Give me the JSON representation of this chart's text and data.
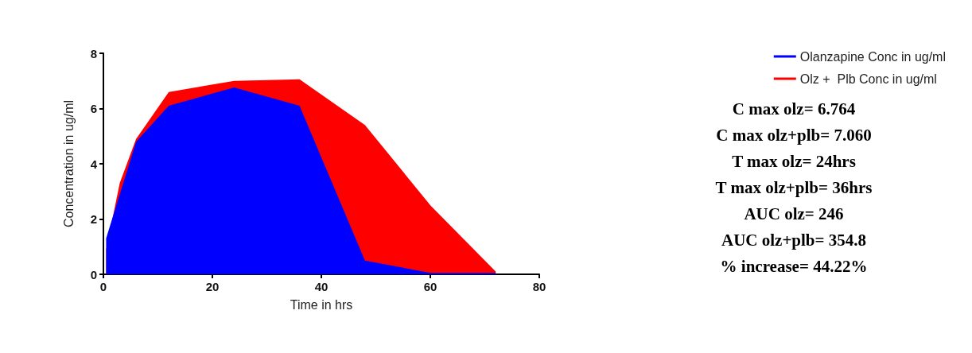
{
  "chart_data": {
    "type": "area",
    "xlabel": "Time in hrs",
    "ylabel": "Concentration in ug/ml",
    "xlim": [
      0,
      80
    ],
    "xticks": [
      0,
      20,
      40,
      60,
      80
    ],
    "ylim": [
      0,
      8
    ],
    "yticks": [
      0,
      2,
      4,
      6,
      8
    ],
    "grid": false,
    "legend": "top right",
    "marker": "none",
    "series": [
      {
        "name": "Olz +  Plb Conc in ug/ml",
        "color": "#ff0000",
        "x": [
          0.5,
          3,
          6,
          12,
          24,
          36,
          48,
          60,
          72
        ],
        "values": [
          0.9,
          3.3,
          4.9,
          6.6,
          7.0,
          7.06,
          5.4,
          2.5,
          0.1
        ]
      },
      {
        "name": "Olanzapine Conc in ug/ml",
        "color": "#0000ff",
        "x": [
          0.5,
          6,
          12,
          24,
          36,
          48,
          60,
          72
        ],
        "values": [
          1.3,
          4.8,
          6.1,
          6.764,
          6.1,
          0.5,
          0.05,
          0.05
        ]
      }
    ],
    "annotations": [
      "C max olz= 6.764",
      "C max olz+plb= 7.060",
      "T max olz= 24hrs",
      "T max olz+plb= 36hrs",
      "AUC olz= 246",
      "AUC olz+plb= 354.8",
      "% increase= 44.22%"
    ]
  }
}
